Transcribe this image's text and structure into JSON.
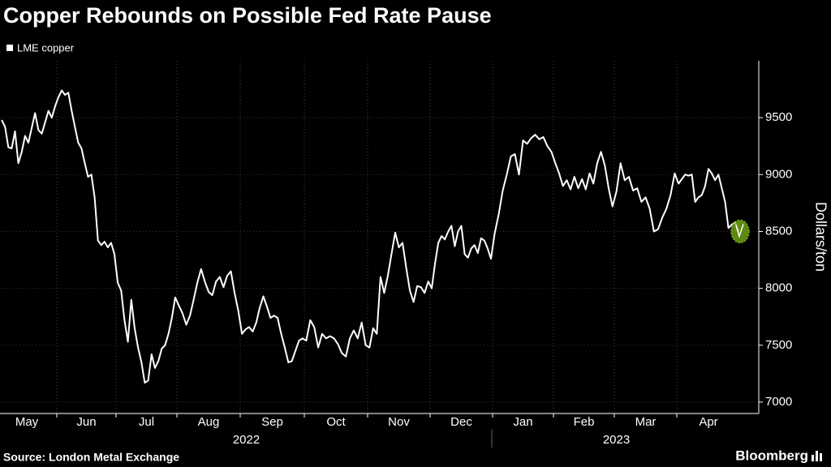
{
  "chart_data": {
    "type": "line",
    "title": "Copper Rebounds on Possible Fed Rate Pause",
    "y_label": "Dollars/ton",
    "source": "Source: London Metal Exchange",
    "brand": "Bloomberg",
    "categories": [
      "May",
      "Jun",
      "Jul",
      "Aug",
      "Sep",
      "Oct",
      "Nov",
      "Dec",
      "Jan",
      "Feb",
      "Mar",
      "Apr"
    ],
    "years": [
      "2022",
      "2023"
    ],
    "series": [
      {
        "name": "LME copper",
        "color": "#ffffff",
        "values": [
          [
            9480,
            9420,
            9240,
            9230,
            9380,
            9100,
            9200,
            9340,
            9280,
            9410,
            9540,
            9390,
            9360,
            9460,
            9560,
            9500,
            9600
          ],
          [
            9680,
            9740,
            9700,
            9720,
            9560,
            9420,
            9280,
            9230,
            9100,
            8980,
            9000,
            8800,
            8420,
            8380,
            8410,
            8360,
            8400,
            8300
          ],
          [
            8050,
            7980,
            7720,
            7530,
            7900,
            7650,
            7480,
            7350,
            7170,
            7190,
            7420,
            7300,
            7360,
            7470,
            7500,
            7600,
            7740,
            7920
          ],
          [
            7850,
            7780,
            7680,
            7760,
            7900,
            8050,
            8170,
            8060,
            7970,
            7940,
            8060,
            8100,
            8010,
            8110,
            8150,
            7960,
            7800
          ],
          [
            7600,
            7640,
            7660,
            7620,
            7700,
            7830,
            7930,
            7840,
            7740,
            7760,
            7740,
            7600,
            7480,
            7350,
            7360,
            7450,
            7540,
            7560
          ],
          [
            7540,
            7720,
            7660,
            7480,
            7600,
            7560,
            7580,
            7560,
            7510,
            7430,
            7400,
            7560,
            7630,
            7560,
            7700,
            7500
          ],
          [
            7480,
            7650,
            7600,
            8100,
            7960,
            8110,
            8300,
            8490,
            8360,
            8400,
            8180,
            7980,
            7880,
            8020,
            8010,
            7960,
            8060
          ],
          [
            8000,
            8220,
            8400,
            8460,
            8430,
            8500,
            8550,
            8370,
            8500,
            8550,
            8300,
            8270,
            8350,
            8380,
            8310,
            8440,
            8420,
            8350,
            8260
          ],
          [
            8480,
            8650,
            8860,
            9000,
            9160,
            9180,
            9000,
            9300,
            9270,
            9320,
            9350,
            9310,
            9330,
            9250,
            9200
          ],
          [
            9100,
            9010,
            8900,
            8950,
            8870,
            8980,
            8880,
            8960,
            8870,
            9010,
            8920,
            9100,
            9200,
            9080,
            8880,
            8720
          ],
          [
            8850,
            9100,
            8950,
            8980,
            8860,
            8880,
            8760,
            8800,
            8700,
            8500,
            8520,
            8620,
            8700,
            8820,
            9010
          ],
          [
            8920,
            8960,
            9000,
            8990,
            9000,
            8760,
            8800,
            8820,
            8900,
            9050,
            9010,
            8950,
            9000,
            8880,
            8760,
            8530,
            8560,
            8580,
            8500
          ]
        ]
      }
    ],
    "ylim": [
      6900,
      10000
    ],
    "yticks": [
      7000,
      7500,
      8000,
      8500,
      9000,
      9500
    ],
    "grid": true,
    "highlight_color": "#7cb518"
  }
}
